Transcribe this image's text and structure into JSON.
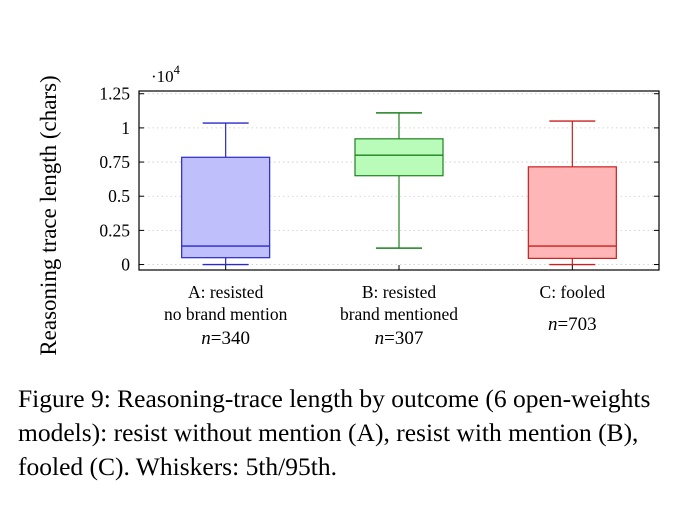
{
  "chart_data": {
    "type": "box",
    "ylabel": "Reasoning trace length (chars)",
    "y_multiplier": "·10",
    "y_multiplier_exp": "4",
    "ylim": [
      -0.04,
      1.27
    ],
    "yticks": [
      0,
      0.25,
      0.5,
      0.75,
      1,
      1.25
    ],
    "ytick_labels": [
      "0",
      "0.25",
      "0.5",
      "0.75",
      "1",
      "1.25"
    ],
    "grid": true,
    "whiskers": "5th/95th",
    "series": [
      {
        "category_lines": [
          "A: resisted",
          "no brand mention"
        ],
        "n_prefix": "n",
        "n_value": "=340",
        "whisker_low": 0.0,
        "q1": 0.05,
        "median": 0.135,
        "q3": 0.785,
        "whisker_high": 1.035,
        "color": "#2929cc",
        "fill": "#bfbffb"
      },
      {
        "category_lines": [
          "B: resisted",
          "brand mentioned"
        ],
        "n_prefix": "n",
        "n_value": "=307",
        "whisker_low": 0.12,
        "q1": 0.65,
        "median": 0.8,
        "q3": 0.92,
        "whisker_high": 1.11,
        "color": "#1f801f",
        "fill": "#b9fbb9"
      },
      {
        "category_lines": [
          "C: fooled"
        ],
        "n_prefix": "n",
        "n_value": "=703",
        "whisker_low": 0.0,
        "q1": 0.045,
        "median": 0.135,
        "q3": 0.715,
        "whisker_high": 1.05,
        "color": "#cc1f1f",
        "fill": "#ffb6b6"
      }
    ]
  },
  "caption": {
    "text": "Figure 9: Reasoning-trace length by outcome (6 open-weights models): resist without mention (A), resist with mention (B), fooled (C). Whiskers: 5th/95th."
  }
}
